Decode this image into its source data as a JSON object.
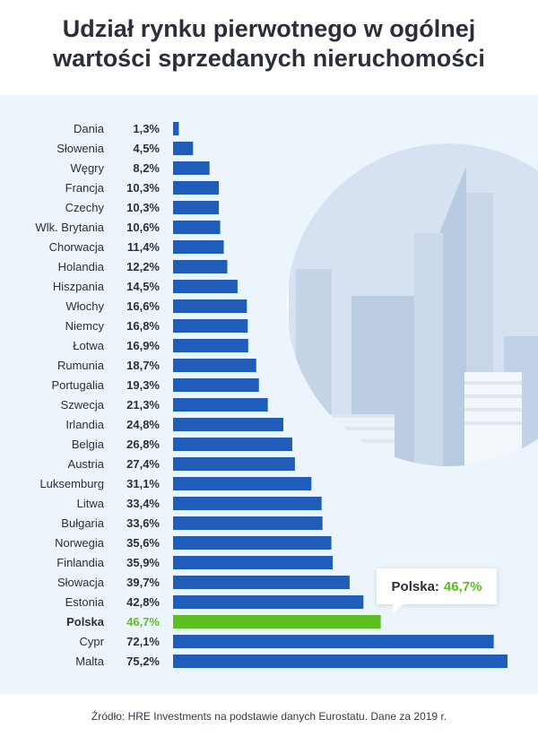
{
  "header": {
    "title_line1": "Udział rynku pierwotnego w ogólnej",
    "title_line2": "wartości sprzedanych nieruchomości"
  },
  "callout": {
    "label": "Polska:",
    "value": "46,7%"
  },
  "footer": {
    "source": "Źródło: HRE Investments na podstawie danych Eurostatu. Dane za 2019 r."
  },
  "colors": {
    "bar": "#1f5db8",
    "highlight": "#5cbf20",
    "text": "#2b2f3a"
  },
  "chart_data": {
    "type": "bar",
    "orientation": "horizontal",
    "title": "Udział rynku pierwotnego w ogólnej wartości sprzedanych nieruchomości",
    "xlabel": "",
    "ylabel": "",
    "xlim": [
      0,
      75.2
    ],
    "categories": [
      "Dania",
      "Słowenia",
      "Węgry",
      "Francja",
      "Czechy",
      "Wlk. Brytania",
      "Chorwacja",
      "Holandia",
      "Hiszpania",
      "Włochy",
      "Niemcy",
      "Łotwa",
      "Rumunia",
      "Portugalia",
      "Szwecja",
      "Irlandia",
      "Belgia",
      "Austria",
      "Luksemburg",
      "Litwa",
      "Bułgaria",
      "Norwegia",
      "Finlandia",
      "Słowacja",
      "Estonia",
      "Polska",
      "Cypr",
      "Malta"
    ],
    "values": [
      1.3,
      4.5,
      8.2,
      10.3,
      10.3,
      10.6,
      11.4,
      12.2,
      14.5,
      16.6,
      16.8,
      16.9,
      18.7,
      19.3,
      21.3,
      24.8,
      26.8,
      27.4,
      31.1,
      33.4,
      33.6,
      35.6,
      35.9,
      39.7,
      42.8,
      46.7,
      72.1,
      75.2
    ],
    "value_labels": [
      "1,3%",
      "4,5%",
      "8,2%",
      "10,3%",
      "10,3%",
      "10,6%",
      "11,4%",
      "12,2%",
      "14,5%",
      "16,6%",
      "16,8%",
      "16,9%",
      "18,7%",
      "19,3%",
      "21,3%",
      "24,8%",
      "26,8%",
      "27,4%",
      "31,1%",
      "33,4%",
      "33,6%",
      "35,6%",
      "35,9%",
      "39,7%",
      "42,8%",
      "46,7%",
      "72,1%",
      "75,2%"
    ],
    "highlight": "Polska",
    "grid": false,
    "legend": "none"
  }
}
